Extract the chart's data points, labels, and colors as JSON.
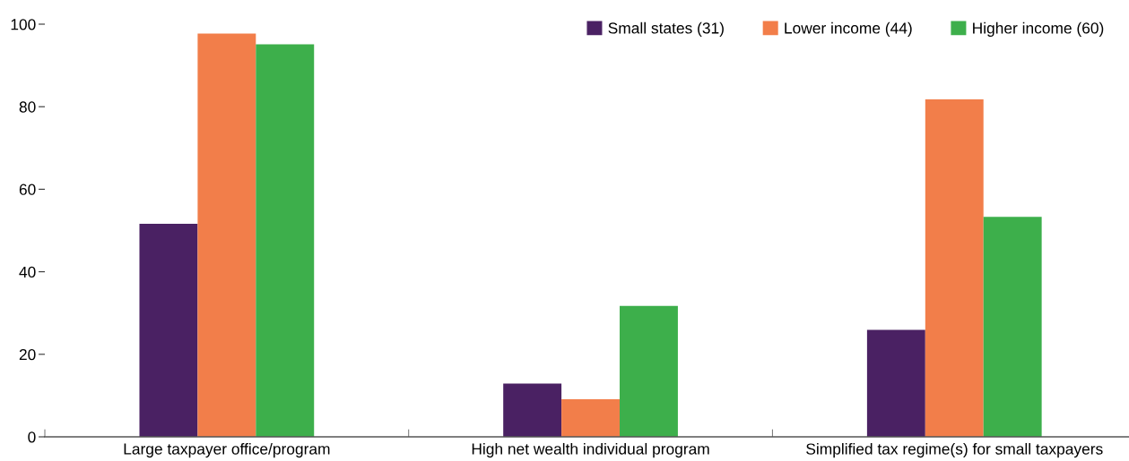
{
  "chart_data": {
    "type": "bar",
    "categories": [
      "Large taxpayer office/program",
      "High net wealth individual program",
      "Simplified tax regime(s) for small taxpayers"
    ],
    "series": [
      {
        "name": "Small states (31)",
        "color": "#4a2163",
        "values": [
          51.6,
          12.9,
          25.9
        ]
      },
      {
        "name": "Lower income (44)",
        "color": "#f27e4a",
        "values": [
          97.7,
          9.1,
          81.8
        ]
      },
      {
        "name": "Higher income (60)",
        "color": "#3daf4b",
        "values": [
          95.1,
          31.7,
          53.3
        ]
      }
    ],
    "ylim": [
      0,
      100
    ],
    "yticks": [
      0,
      20,
      40,
      60,
      80,
      100
    ],
    "grid": false,
    "legend": "top right"
  }
}
